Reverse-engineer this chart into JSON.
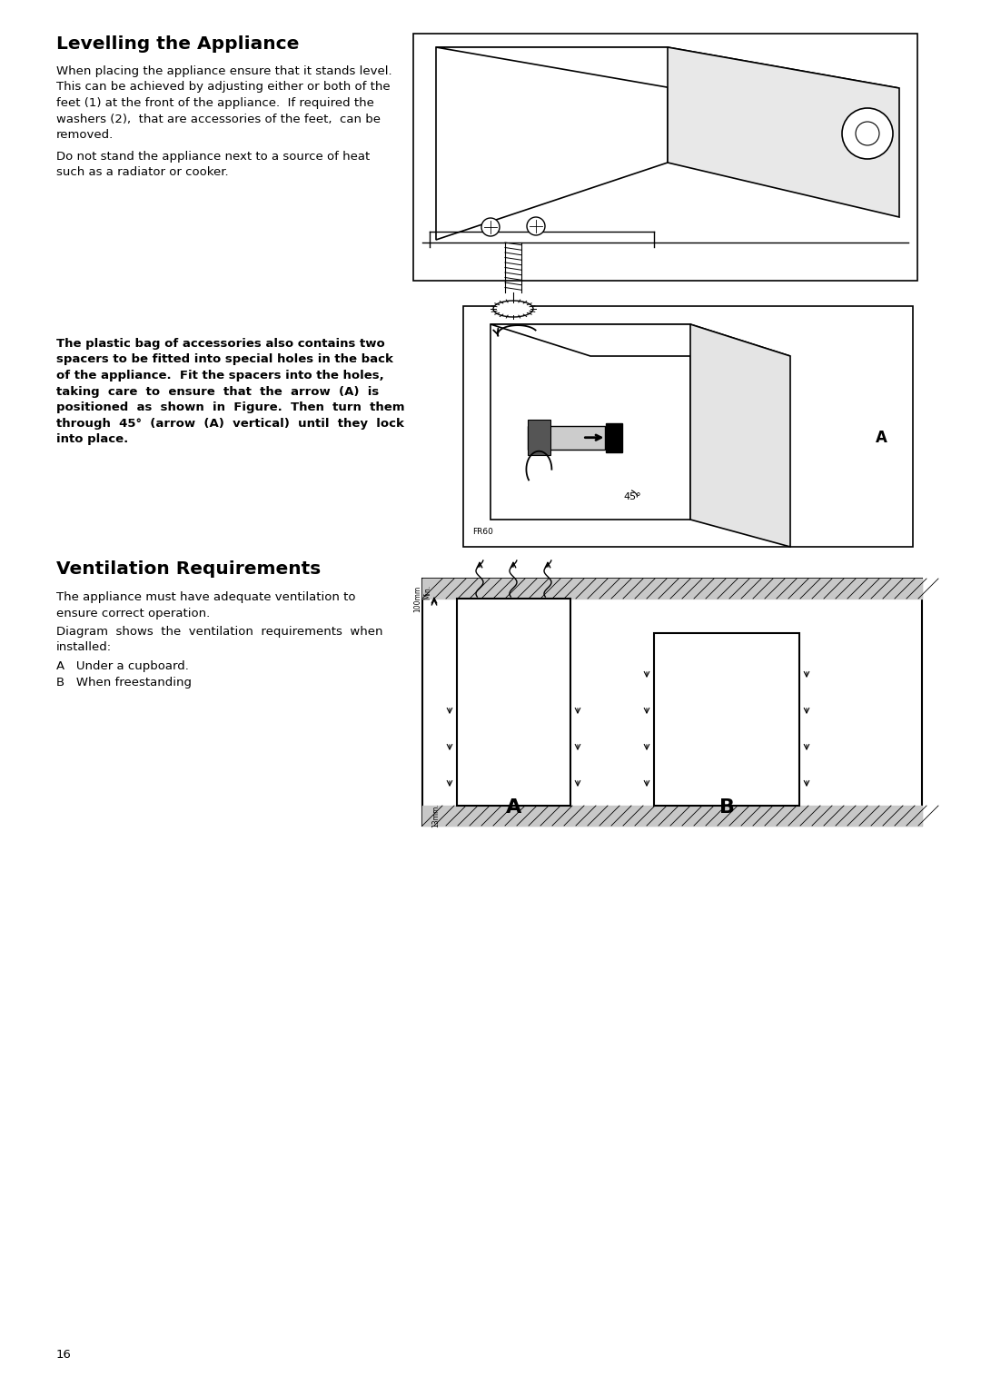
{
  "title1": "Levelling the Appliance",
  "title2": "Ventilation Requirements",
  "para1_line1": "When placing the appliance ensure that it stands level.",
  "para1_line2": "This can be achieved by adjusting either or both of the",
  "para1_line3": "feet (1) at the front of the appliance.  If required the",
  "para1_line4": "washers (2),  that are accessories of the feet,  can be",
  "para1_line5": "removed.",
  "para2_line1": "Do not stand the appliance next to a source of heat",
  "para2_line2": "such as a radiator or cooker.",
  "para3_line1": "The plastic bag of accessories also contains two",
  "para3_line2": "spacers to be fitted into special holes in the back",
  "para3_line3": "of the appliance.  Fit the spacers into the holes,",
  "para3_line4": "taking  care  to  ensure  that  the  arrow  (A)  is",
  "para3_line5": "positioned  as  shown  in  Figure.  Then  turn  them",
  "para3_line6": "through  45°  (arrow  (A)  vertical)  until  they  lock",
  "para3_line7": "into place.",
  "para4_line1": "The appliance must have adequate ventilation to",
  "para4_line2": "ensure correct operation.",
  "para5_line1": "Diagram  shows  the  ventilation  requirements  when",
  "para5_line2": "installed:",
  "label_A": "A   Under a cupboard.",
  "label_B": "B   When freestanding",
  "page_number": "16",
  "bg_color": "#ffffff",
  "text_color": "#000000"
}
